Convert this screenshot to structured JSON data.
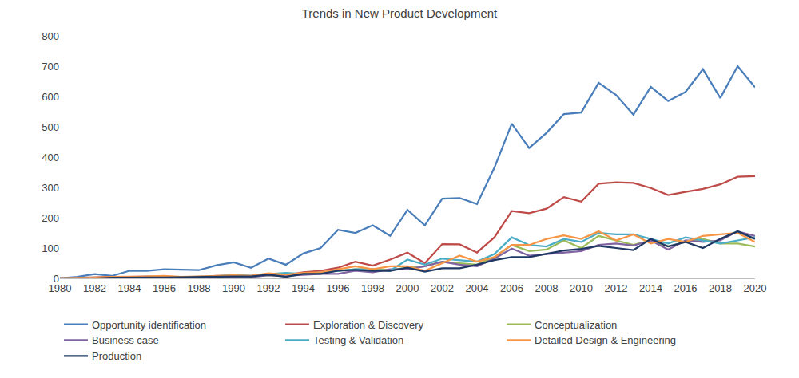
{
  "chart_data": {
    "type": "line",
    "title": "Trends in New Product Development",
    "x": [
      1980,
      1981,
      1982,
      1983,
      1984,
      1985,
      1986,
      1987,
      1988,
      1989,
      1990,
      1991,
      1992,
      1993,
      1994,
      1995,
      1996,
      1997,
      1998,
      1999,
      2000,
      2001,
      2002,
      2003,
      2004,
      2005,
      2006,
      2007,
      2008,
      2009,
      2010,
      2011,
      2012,
      2013,
      2014,
      2015,
      2016,
      2017,
      2018,
      2019,
      2020
    ],
    "xlim": [
      1980,
      2020
    ],
    "xticks": [
      1980,
      1982,
      1984,
      1986,
      1988,
      1990,
      1992,
      1994,
      1996,
      1998,
      2000,
      2002,
      2004,
      2006,
      2008,
      2010,
      2012,
      2014,
      2016,
      2018,
      2020
    ],
    "ylim": [
      0,
      800
    ],
    "yticks": [
      0,
      100,
      200,
      300,
      400,
      500,
      600,
      700,
      800
    ],
    "grid": false,
    "legend": "bottom",
    "series": [
      {
        "name": "Opportunity identification",
        "color": "#4a7ebb",
        "values": [
          0,
          5,
          14,
          8,
          25,
          25,
          30,
          28,
          27,
          43,
          53,
          35,
          65,
          45,
          82,
          100,
          160,
          150,
          175,
          140,
          226,
          175,
          263,
          265,
          245,
          365,
          510,
          430,
          480,
          542,
          547,
          645,
          605,
          540,
          632,
          585,
          615,
          690,
          595,
          700,
          630
        ]
      },
      {
        "name": "Exploration & Discovery",
        "color": "#be4b48",
        "values": [
          0,
          2,
          3,
          5,
          5,
          6,
          5,
          5,
          5,
          8,
          8,
          8,
          15,
          10,
          20,
          25,
          35,
          55,
          42,
          62,
          85,
          50,
          113,
          112,
          85,
          135,
          222,
          215,
          230,
          268,
          253,
          312,
          317,
          315,
          298,
          275,
          285,
          295,
          310,
          335,
          337
        ]
      },
      {
        "name": "Conceptualization",
        "color": "#9bbb59",
        "values": [
          0,
          0,
          0,
          2,
          3,
          3,
          4,
          3,
          4,
          5,
          6,
          5,
          10,
          8,
          15,
          18,
          25,
          30,
          30,
          28,
          35,
          40,
          55,
          50,
          45,
          70,
          110,
          90,
          95,
          125,
          100,
          140,
          125,
          110,
          125,
          105,
          120,
          130,
          115,
          115,
          105
        ]
      },
      {
        "name": "Business case",
        "color": "#8064a2",
        "values": [
          0,
          0,
          0,
          1,
          2,
          2,
          2,
          3,
          3,
          4,
          5,
          4,
          10,
          8,
          12,
          15,
          15,
          25,
          20,
          30,
          30,
          40,
          55,
          45,
          40,
          65,
          98,
          75,
          80,
          85,
          90,
          110,
          115,
          108,
          125,
          95,
          125,
          120,
          125,
          155,
          140
        ]
      },
      {
        "name": "Testing & Validation",
        "color": "#4bacc6",
        "values": [
          0,
          0,
          1,
          2,
          3,
          3,
          4,
          4,
          5,
          7,
          12,
          8,
          14,
          18,
          15,
          20,
          25,
          30,
          30,
          25,
          62,
          45,
          65,
          60,
          55,
          80,
          135,
          110,
          105,
          130,
          120,
          150,
          145,
          145,
          130,
          115,
          135,
          125,
          115,
          125,
          135
        ]
      },
      {
        "name": "Detailed Design & Engineering",
        "color": "#f79646",
        "values": [
          0,
          1,
          2,
          5,
          5,
          6,
          8,
          5,
          6,
          8,
          10,
          8,
          17,
          12,
          18,
          20,
          30,
          40,
          30,
          40,
          40,
          25,
          50,
          75,
          55,
          70,
          110,
          110,
          130,
          142,
          130,
          155,
          125,
          145,
          115,
          130,
          120,
          140,
          145,
          150,
          120
        ]
      },
      {
        "name": "Production",
        "color": "#1f3864",
        "values": [
          0,
          0,
          0,
          2,
          3,
          3,
          3,
          4,
          5,
          6,
          6,
          6,
          12,
          5,
          15,
          15,
          25,
          28,
          25,
          25,
          35,
          22,
          33,
          33,
          45,
          60,
          70,
          70,
          80,
          92,
          97,
          107,
          100,
          93,
          130,
          105,
          120,
          100,
          130,
          155,
          130
        ]
      }
    ]
  }
}
